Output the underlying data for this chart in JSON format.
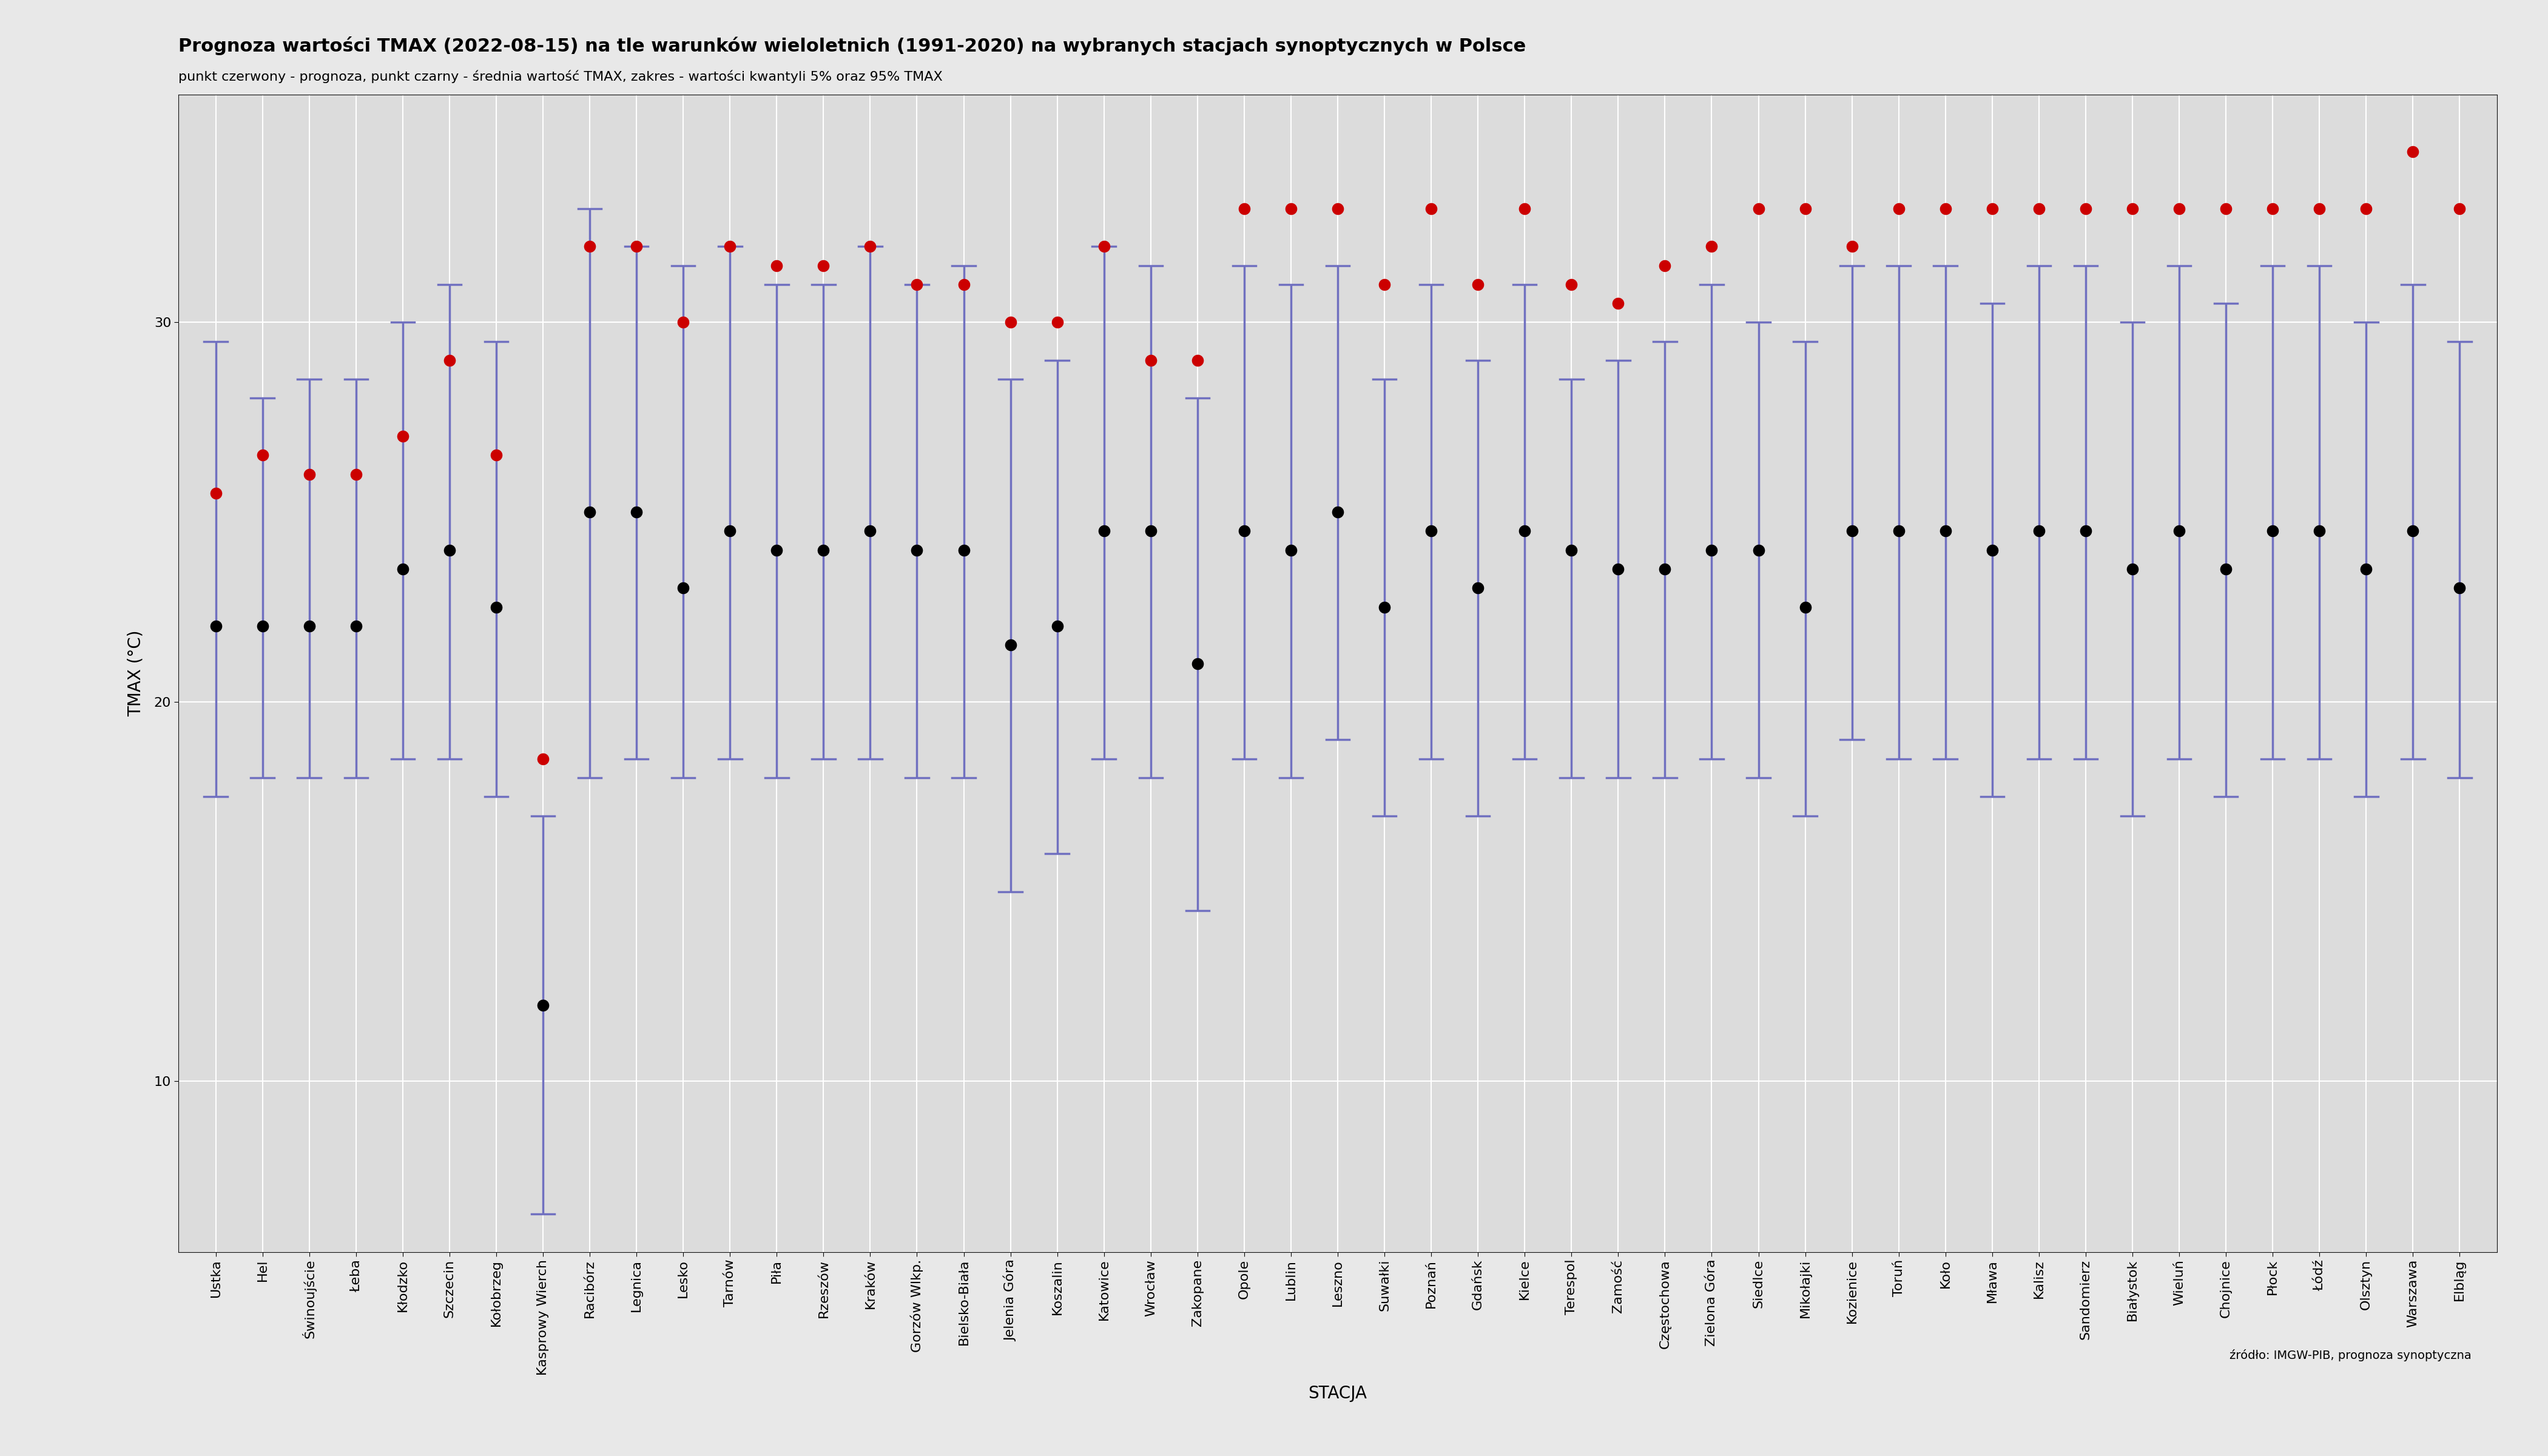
{
  "title": "Prognoza wartości TMAX (2022-08-15) na tle warunków wieloletnich (1991-2020) na wybranych stacjach synoptycznych w Polsce",
  "subtitle": "punkt czerwony - prognoza, punkt czarny - średnia wartość TMAX, zakres - wartości kwantyli 5% oraz 95% TMAX",
  "xlabel": "STACJA",
  "ylabel": "TMAX (°C)",
  "source": "źródło: IMGW-PIB, prognoza synoptyczna",
  "background_color": "#e8e8e8",
  "plot_bg_color": "#dcdcdc",
  "stations": [
    "Ustka",
    "Hel",
    "Świnoujście",
    "Łeba",
    "Kłodzko",
    "Szczecin",
    "Kołobrzeg",
    "Kasprowy Wierch",
    "Racibórz",
    "Legnica",
    "Lesko",
    "Tarnów",
    "Piła",
    "Rzeszów",
    "Kraków",
    "Gorzów Wlkp.",
    "Bielsko-Biała",
    "Jelenia Góra",
    "Koszalin",
    "Katowice",
    "Wrocław",
    "Zakopane",
    "Opole",
    "Lublin",
    "Leszno",
    "Suwałki",
    "Poznań",
    "Gdańsk",
    "Kielce",
    "Terespol",
    "Zamość",
    "Częstochowa",
    "Zielona Góra",
    "Siedlce",
    "Mikołajki",
    "Kozienice",
    "Toruń",
    "Koło",
    "Mława",
    "Kalisz",
    "Sandomierz",
    "Białystok",
    "Wieluń",
    "Chojnice",
    "Płock",
    "Łódź",
    "Olsztyn",
    "Warszawa",
    "Elbląg"
  ],
  "tmax_mean": [
    22.0,
    22.0,
    22.0,
    22.0,
    23.5,
    24.0,
    22.5,
    12.0,
    25.0,
    25.0,
    23.0,
    24.5,
    24.0,
    24.0,
    24.5,
    24.0,
    24.0,
    21.5,
    22.0,
    24.5,
    24.5,
    21.0,
    24.5,
    24.0,
    25.0,
    22.5,
    24.5,
    23.0,
    24.5,
    24.0,
    23.5,
    23.5,
    24.0,
    24.0,
    22.5,
    24.5,
    24.5,
    24.5,
    24.0,
    24.5,
    24.5,
    23.5,
    24.5,
    23.5,
    24.5,
    24.5,
    23.5,
    24.5,
    23.0
  ],
  "tmax_q05": [
    17.5,
    18.0,
    18.0,
    18.0,
    18.5,
    18.5,
    17.5,
    6.5,
    18.0,
    18.5,
    18.0,
    18.5,
    18.0,
    18.5,
    18.5,
    18.0,
    18.0,
    15.0,
    16.0,
    18.5,
    18.0,
    14.5,
    18.5,
    18.0,
    19.0,
    17.0,
    18.5,
    17.0,
    18.5,
    18.0,
    18.0,
    18.0,
    18.5,
    18.0,
    17.0,
    19.0,
    18.5,
    18.5,
    17.5,
    18.5,
    18.5,
    17.0,
    18.5,
    17.5,
    18.5,
    18.5,
    17.5,
    18.5,
    18.0
  ],
  "tmax_q95": [
    29.5,
    28.0,
    28.5,
    28.5,
    30.0,
    31.0,
    29.5,
    17.0,
    33.0,
    32.0,
    31.5,
    32.0,
    31.0,
    31.0,
    32.0,
    31.0,
    31.5,
    28.5,
    29.0,
    32.0,
    31.5,
    28.0,
    31.5,
    31.0,
    31.5,
    28.5,
    31.0,
    29.0,
    31.0,
    28.5,
    29.0,
    29.5,
    31.0,
    30.0,
    29.5,
    31.5,
    31.5,
    31.5,
    30.5,
    31.5,
    31.5,
    30.0,
    31.5,
    30.5,
    31.5,
    31.5,
    30.0,
    31.0,
    29.5
  ],
  "tmax_forecast": [
    25.5,
    26.5,
    26.0,
    26.0,
    27.0,
    29.0,
    26.5,
    18.5,
    32.0,
    32.0,
    30.0,
    32.0,
    31.5,
    31.5,
    32.0,
    31.0,
    31.0,
    30.0,
    30.0,
    32.0,
    29.0,
    29.0,
    33.0,
    33.0,
    33.0,
    31.0,
    33.0,
    31.0,
    33.0,
    31.0,
    30.5,
    31.5,
    32.0,
    33.0,
    33.0,
    32.0,
    33.0,
    33.0,
    33.0,
    33.0,
    33.0,
    33.0,
    33.0,
    33.0,
    33.0,
    33.0,
    33.0,
    34.5,
    33.0
  ],
  "grid_color": "#ffffff",
  "mean_color": "#000000",
  "forecast_color": "#cc0000",
  "errbar_color": "#7070c0",
  "title_fontsize": 22,
  "subtitle_fontsize": 16,
  "axis_label_fontsize": 20,
  "tick_fontsize": 16,
  "source_fontsize": 14,
  "ylim": [
    5.5,
    36
  ],
  "yticks": [
    10,
    20,
    30
  ]
}
